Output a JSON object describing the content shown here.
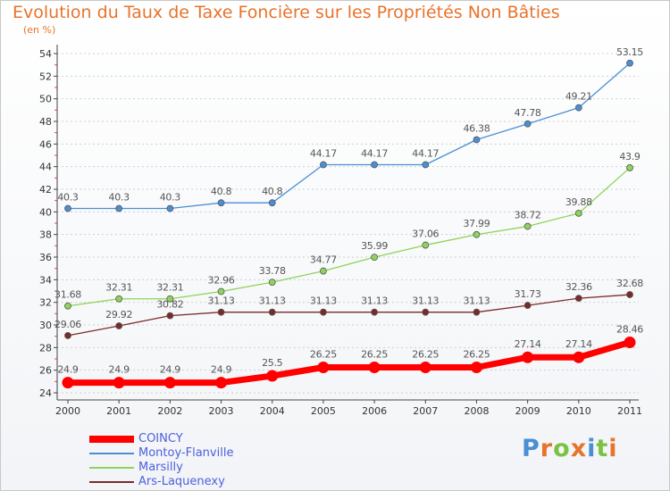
{
  "title": "Evolution du Taux de Taxe Foncière sur les Propriétés Non Bâties",
  "subtitle": "(en %)",
  "brand": "Proxiti",
  "brand_colors": [
    "#4a8fd4",
    "#e8732a",
    "#7cc242",
    "#e8732a",
    "#4a8fd4",
    "#7cc242",
    "#e8732a"
  ],
  "chart_data": {
    "type": "line",
    "x": [
      "2000",
      "2001",
      "2002",
      "2003",
      "2004",
      "2005",
      "2006",
      "2007",
      "2008",
      "2009",
      "2010",
      "2011"
    ],
    "ylim": [
      24,
      54
    ],
    "yticks": [
      "24",
      "26",
      "28",
      "30",
      "32",
      "34",
      "36",
      "38",
      "40",
      "42",
      "44",
      "46",
      "48",
      "50",
      "52",
      "54"
    ],
    "grid": "horizontal dotted",
    "legend_position": "bottom-left",
    "series": [
      {
        "name": "COINCY",
        "color": "#ff0000",
        "values": [
          24.9,
          24.9,
          24.9,
          24.9,
          25.5,
          26.25,
          26.25,
          26.25,
          26.25,
          27.14,
          27.14,
          28.46
        ],
        "labels": [
          "24.9",
          "24.9",
          "24.9",
          "24.9",
          "25.5",
          "26.25",
          "26.25",
          "26.25",
          "26.25",
          "27.14",
          "27.14",
          "28.46"
        ]
      },
      {
        "name": "Montoy-Flanville",
        "color": "#4a8fd4",
        "values": [
          40.3,
          40.3,
          40.3,
          40.8,
          40.8,
          44.17,
          44.17,
          44.17,
          46.38,
          47.78,
          49.21,
          53.15
        ],
        "labels": [
          "40.3",
          "40.3",
          "40.3",
          "40.8",
          "40.8",
          "44.17",
          "44.17",
          "44.17",
          "46.38",
          "47.78",
          "49.21",
          "53.15"
        ]
      },
      {
        "name": "Marsilly",
        "color": "#8ed35a",
        "values": [
          31.68,
          32.31,
          32.31,
          32.96,
          33.78,
          34.77,
          35.99,
          37.06,
          37.99,
          38.72,
          39.88,
          43.9
        ],
        "labels": [
          "31.68",
          "32.31",
          "32.31",
          "32.96",
          "33.78",
          "34.77",
          "35.99",
          "37.06",
          "37.99",
          "38.72",
          "39.88",
          "43.9"
        ]
      },
      {
        "name": "Ars-Laquenexy",
        "color": "#7b2a2a",
        "values": [
          29.06,
          29.92,
          30.82,
          31.13,
          31.13,
          31.13,
          31.13,
          31.13,
          31.13,
          31.73,
          32.36,
          32.68
        ],
        "labels": [
          "29.06",
          "29.92",
          "30.82",
          "31.13",
          "31.13",
          "31.13",
          "31.13",
          "31.13",
          "31.13",
          "31.73",
          "32.36",
          "32.68"
        ]
      }
    ]
  }
}
